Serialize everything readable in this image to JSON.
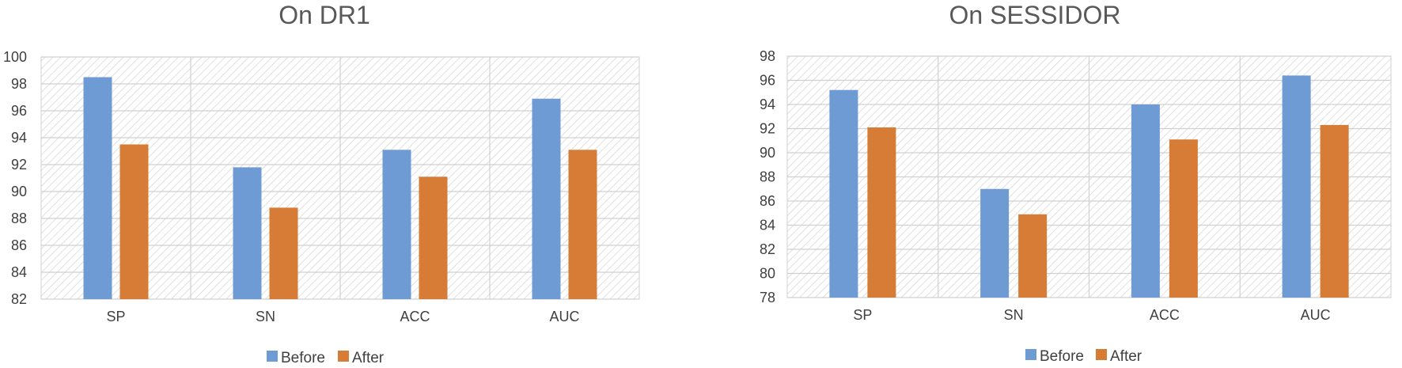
{
  "colors": {
    "before": "#6f9bd4",
    "after": "#d77c36",
    "grid": "#d0d0d0",
    "hatch": "#c8c8c8"
  },
  "chart_data": [
    {
      "type": "bar",
      "title": "On DR1",
      "categories": [
        "SP",
        "SN",
        "ACC",
        "AUC"
      ],
      "series": [
        {
          "name": "Before",
          "values": [
            98.5,
            91.8,
            93.1,
            96.9
          ]
        },
        {
          "name": "After",
          "values": [
            93.5,
            88.8,
            91.1,
            93.1
          ]
        }
      ],
      "ylim": [
        82,
        100
      ],
      "ystep": 2,
      "grid": true,
      "legend": "bottom"
    },
    {
      "type": "bar",
      "title": "On SESSIDOR",
      "categories": [
        "SP",
        "SN",
        "ACC",
        "AUC"
      ],
      "series": [
        {
          "name": "Before",
          "values": [
            95.2,
            87.0,
            94.0,
            96.4
          ]
        },
        {
          "name": "After",
          "values": [
            92.1,
            84.9,
            91.1,
            92.3
          ]
        }
      ],
      "ylim": [
        78,
        98
      ],
      "ystep": 2,
      "grid": true,
      "legend": "bottom"
    }
  ]
}
